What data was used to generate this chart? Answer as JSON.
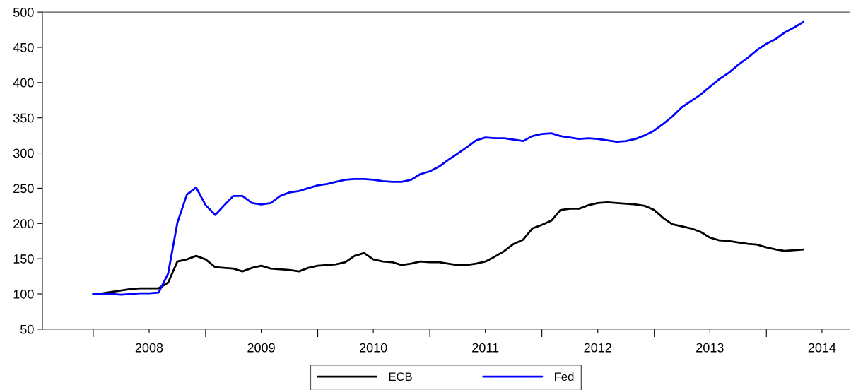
{
  "chart_data": {
    "type": "line",
    "x": [
      "2008-01",
      "2008-02",
      "2008-03",
      "2008-04",
      "2008-05",
      "2008-06",
      "2008-07",
      "2008-08",
      "2008-09",
      "2008-10",
      "2008-11",
      "2008-12",
      "2009-01",
      "2009-02",
      "2009-03",
      "2009-04",
      "2009-05",
      "2009-06",
      "2009-07",
      "2009-08",
      "2009-09",
      "2009-10",
      "2009-11",
      "2009-12",
      "2010-01",
      "2010-02",
      "2010-03",
      "2010-04",
      "2010-05",
      "2010-06",
      "2010-07",
      "2010-08",
      "2010-09",
      "2010-10",
      "2010-11",
      "2010-12",
      "2011-01",
      "2011-02",
      "2011-03",
      "2011-04",
      "2011-05",
      "2011-06",
      "2011-07",
      "2011-08",
      "2011-09",
      "2011-10",
      "2011-11",
      "2011-12",
      "2012-01",
      "2012-02",
      "2012-03",
      "2012-04",
      "2012-05",
      "2012-06",
      "2012-07",
      "2012-08",
      "2012-09",
      "2012-10",
      "2012-11",
      "2012-12",
      "2013-01",
      "2013-02",
      "2013-03",
      "2013-04",
      "2013-05",
      "2013-06",
      "2013-07",
      "2013-08",
      "2013-09",
      "2013-10",
      "2013-11",
      "2013-12",
      "2014-01",
      "2014-02",
      "2014-03",
      "2014-04",
      "2014-05"
    ],
    "series": [
      {
        "name": "ECB",
        "color": "#000000",
        "values": [
          100,
          101,
          103,
          105,
          107,
          108,
          108,
          108,
          116,
          146,
          149,
          154,
          149,
          138,
          137,
          136,
          132,
          137,
          140,
          136,
          135,
          134,
          132,
          137,
          140,
          141,
          142,
          145,
          154,
          158,
          149,
          146,
          145,
          141,
          143,
          146,
          145,
          145,
          143,
          141,
          141,
          143,
          146,
          153,
          161,
          171,
          177,
          193,
          198,
          204,
          219,
          221,
          221,
          226,
          229,
          230,
          229,
          228,
          227,
          225,
          219,
          207,
          199,
          196,
          193,
          188,
          180,
          176,
          175,
          173,
          171,
          170,
          166,
          163,
          161,
          162,
          163
        ]
      },
      {
        "name": "Fed",
        "color": "#0000ff",
        "values": [
          100,
          100,
          100,
          99,
          100,
          101,
          101,
          102,
          129,
          201,
          241,
          251,
          226,
          212,
          225,
          239,
          239,
          229,
          227,
          229,
          239,
          244,
          246,
          250,
          254,
          256,
          259,
          262,
          263,
          263,
          262,
          260,
          259,
          259,
          262,
          270,
          274,
          281,
          290,
          299,
          308,
          318,
          322,
          321,
          321,
          319,
          317,
          324,
          327,
          328,
          324,
          322,
          320,
          321,
          320,
          318,
          316,
          317,
          320,
          325,
          332,
          342,
          352,
          365,
          374,
          383,
          394,
          405,
          414,
          425,
          435,
          446,
          455,
          462,
          471,
          478,
          486
        ]
      }
    ],
    "xlim": [
      "2007-07-20",
      "2014-09-28"
    ],
    "xticks": [
      {
        "value": "2008-01-01",
        "label": null
      },
      {
        "value": "2008-07-01",
        "label": "2008"
      },
      {
        "value": "2009-01-01",
        "label": null
      },
      {
        "value": "2009-07-01",
        "label": "2009"
      },
      {
        "value": "2010-01-01",
        "label": null
      },
      {
        "value": "2010-07-01",
        "label": "2010"
      },
      {
        "value": "2011-01-01",
        "label": null
      },
      {
        "value": "2011-07-01",
        "label": "2011"
      },
      {
        "value": "2012-01-01",
        "label": null
      },
      {
        "value": "2012-07-01",
        "label": "2012"
      },
      {
        "value": "2013-01-01",
        "label": null
      },
      {
        "value": "2013-07-01",
        "label": "2013"
      },
      {
        "value": "2014-01-01",
        "label": null
      },
      {
        "value": "2014-07-01",
        "label": "2014"
      }
    ],
    "ylim": [
      50,
      500
    ],
    "yticks": [
      50,
      100,
      150,
      200,
      250,
      300,
      350,
      400,
      450,
      500
    ],
    "grid": false,
    "legend": "bottom"
  }
}
